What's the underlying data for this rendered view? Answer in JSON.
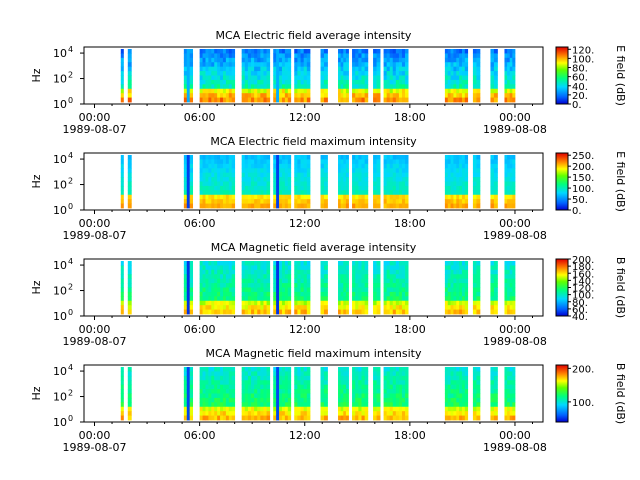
{
  "chart_data": [
    {
      "type": "heatmap",
      "title": "MCA  Electric field average intensity",
      "ylabel": "Hz",
      "y_ticks": [
        {
          "label": "10",
          "exp": "0"
        },
        {
          "label": "10",
          "exp": "2"
        },
        {
          "label": "10",
          "exp": "4"
        }
      ],
      "ylim": [
        1,
        30000
      ],
      "y_scale": "log",
      "x_ticks": [
        {
          "time": "00:00",
          "date": "1989-08-07"
        },
        {
          "time": "06:00",
          "date": ""
        },
        {
          "time": "12:00",
          "date": ""
        },
        {
          "time": "18:00",
          "date": ""
        },
        {
          "time": "00:00",
          "date": "1989-08-08"
        }
      ],
      "colorbar": {
        "label": "E field (dB)",
        "range": [
          0,
          125
        ],
        "ticks": [
          "0.",
          "20.",
          "40.",
          "60.",
          "80.",
          "100.",
          "120."
        ]
      },
      "data_intervals_hours": [
        [
          1.5,
          1.65
        ],
        [
          1.9,
          2.1
        ],
        [
          5.1,
          5.6
        ],
        [
          6.0,
          8.0
        ],
        [
          8.4,
          10.0
        ],
        [
          10.2,
          11.2
        ],
        [
          11.4,
          12.3
        ],
        [
          12.9,
          13.3
        ],
        [
          13.9,
          14.5
        ],
        [
          14.7,
          15.6
        ],
        [
          15.9,
          16.3
        ],
        [
          16.5,
          17.9
        ],
        [
          20.0,
          21.3
        ],
        [
          21.6,
          22.0
        ],
        [
          22.6,
          23.0
        ],
        [
          23.4,
          24.0
        ]
      ],
      "level_dB": 60,
      "stripe_dB": 30,
      "hotband_dB": 105,
      "low_dB": 20
    },
    {
      "type": "heatmap",
      "title": "MCA  Electric field maximum intensity",
      "ylabel": "Hz",
      "y_ticks": [
        {
          "label": "10",
          "exp": "0"
        },
        {
          "label": "10",
          "exp": "2"
        },
        {
          "label": "10",
          "exp": "4"
        }
      ],
      "ylim": [
        1,
        30000
      ],
      "y_scale": "log",
      "x_ticks": [
        {
          "time": "00:00",
          "date": "1989-08-07"
        },
        {
          "time": "06:00",
          "date": ""
        },
        {
          "time": "12:00",
          "date": ""
        },
        {
          "time": "18:00",
          "date": ""
        },
        {
          "time": "00:00",
          "date": "1989-08-08"
        }
      ],
      "colorbar": {
        "label": "E field (dB)",
        "range": [
          0,
          260
        ],
        "ticks": [
          "0.",
          "50.",
          "100.",
          "150.",
          "200.",
          "250."
        ]
      },
      "data_intervals_hours": [
        [
          1.5,
          1.65
        ],
        [
          1.9,
          2.1
        ],
        [
          5.1,
          5.6
        ],
        [
          6.0,
          8.0
        ],
        [
          8.4,
          10.0
        ],
        [
          10.2,
          11.2
        ],
        [
          11.4,
          12.3
        ],
        [
          12.9,
          13.3
        ],
        [
          13.9,
          14.5
        ],
        [
          14.7,
          15.6
        ],
        [
          15.9,
          16.3
        ],
        [
          16.5,
          17.9
        ],
        [
          20.0,
          21.3
        ],
        [
          21.6,
          22.0
        ],
        [
          22.6,
          23.0
        ],
        [
          23.4,
          24.0
        ]
      ],
      "level_dB": 110,
      "stripe_dB": 20,
      "hotband_dB": 210,
      "low_dB": 70
    },
    {
      "type": "heatmap",
      "title": "MCA  Magnetic field average intensity",
      "ylabel": "Hz",
      "y_ticks": [
        {
          "label": "10",
          "exp": "0"
        },
        {
          "label": "10",
          "exp": "2"
        },
        {
          "label": "10",
          "exp": "4"
        }
      ],
      "ylim": [
        1,
        30000
      ],
      "y_scale": "log",
      "x_ticks": [
        {
          "time": "00:00",
          "date": "1989-08-07"
        },
        {
          "time": "06:00",
          "date": ""
        },
        {
          "time": "12:00",
          "date": ""
        },
        {
          "time": "18:00",
          "date": ""
        },
        {
          "time": "00:00",
          "date": "1989-08-08"
        }
      ],
      "colorbar": {
        "label": "B field (dB)",
        "range": [
          40,
          200
        ],
        "ticks": [
          "40.",
          "60.",
          "80.",
          "100.",
          "120.",
          "140.",
          "160.",
          "180.",
          "200."
        ]
      },
      "data_intervals_hours": [
        [
          1.5,
          1.65
        ],
        [
          1.9,
          2.1
        ],
        [
          5.1,
          5.6
        ],
        [
          6.0,
          8.0
        ],
        [
          8.4,
          10.0
        ],
        [
          10.2,
          11.2
        ],
        [
          11.4,
          12.3
        ],
        [
          12.9,
          13.3
        ],
        [
          13.9,
          14.5
        ],
        [
          14.7,
          15.6
        ],
        [
          15.9,
          16.3
        ],
        [
          16.5,
          17.9
        ],
        [
          20.0,
          21.3
        ],
        [
          21.6,
          22.0
        ],
        [
          22.6,
          23.0
        ],
        [
          23.4,
          24.0
        ]
      ],
      "level_dB": 120,
      "stripe_dB": 50,
      "hotband_dB": 165,
      "low_dB": 95
    },
    {
      "type": "heatmap",
      "title": "MCA  Magnetic field maximum intensity",
      "ylabel": "Hz",
      "y_ticks": [
        {
          "label": "10",
          "exp": "0"
        },
        {
          "label": "10",
          "exp": "2"
        },
        {
          "label": "10",
          "exp": "4"
        }
      ],
      "ylim": [
        1,
        30000
      ],
      "y_scale": "log",
      "x_ticks": [
        {
          "time": "00:00",
          "date": "1989-08-07"
        },
        {
          "time": "06:00",
          "date": ""
        },
        {
          "time": "12:00",
          "date": ""
        },
        {
          "time": "18:00",
          "date": ""
        },
        {
          "time": "00:00",
          "date": "1989-08-08"
        }
      ],
      "colorbar": {
        "label": "B field (dB)",
        "range": [
          40,
          210
        ],
        "ticks": [
          "100.",
          "200."
        ]
      },
      "data_intervals_hours": [
        [
          1.5,
          1.65
        ],
        [
          1.9,
          2.1
        ],
        [
          5.1,
          5.6
        ],
        [
          6.0,
          8.0
        ],
        [
          8.4,
          10.0
        ],
        [
          10.2,
          11.2
        ],
        [
          11.4,
          12.3
        ],
        [
          12.9,
          13.3
        ],
        [
          13.9,
          14.5
        ],
        [
          14.7,
          15.6
        ],
        [
          15.9,
          16.3
        ],
        [
          16.5,
          17.9
        ],
        [
          20.0,
          21.3
        ],
        [
          21.6,
          22.0
        ],
        [
          22.6,
          23.0
        ],
        [
          23.4,
          24.0
        ]
      ],
      "level_dB": 130,
      "stripe_dB": 55,
      "hotband_dB": 175,
      "low_dB": 100
    }
  ]
}
